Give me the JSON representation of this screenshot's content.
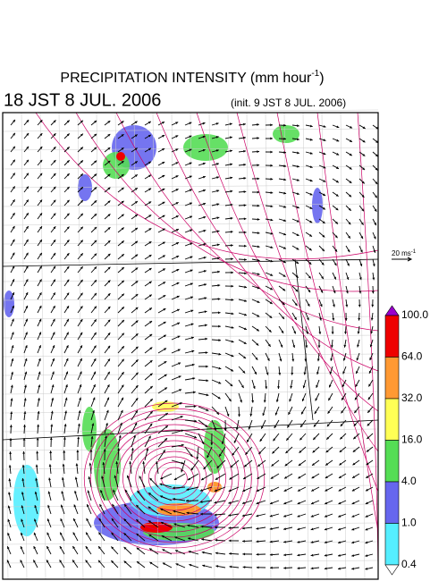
{
  "header": {
    "title": "PRECIPITATION INTENSITY (mm hour",
    "title_sup": "-1",
    "title_end": ")",
    "valid_time": "18 JST 8 JUL. 2006",
    "init_time": "(init. 9 JST 8 JUL. 2006)"
  },
  "reference_vector": {
    "label": "20 ms",
    "label_sup": "-1"
  },
  "colorbar": {
    "labels": [
      "100.0",
      "64.0",
      "32.0",
      "16.0",
      "4.0",
      "1.0",
      "0.4"
    ],
    "over_color": "#9900cc",
    "colors": [
      "#ee0000",
      "#ff9933",
      "#ffff55",
      "#55dd55",
      "#6666ee",
      "#55eeff"
    ],
    "under_color": "#ffffff"
  }
}
